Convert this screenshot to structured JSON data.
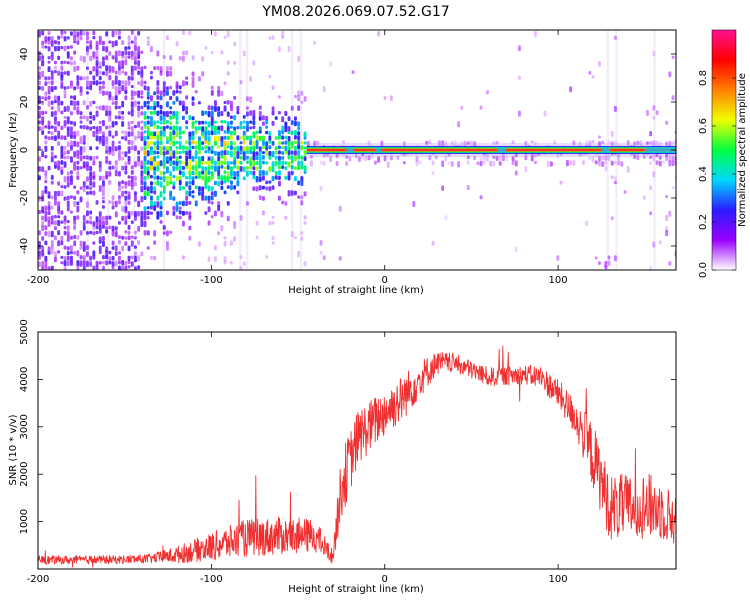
{
  "title": "YM08.2026.069.07.52.G17",
  "colors": {
    "snr_line": "#f03030",
    "frame": "#000000",
    "grid": "#e6e6e6"
  },
  "chart_data": [
    {
      "type": "heatmap",
      "title": "YM08.2026.069.07.52.G17",
      "xlabel": "Height of straight line (km)",
      "ylabel": "Frequency (Hz)",
      "xlim": [
        -200,
        168
      ],
      "ylim": [
        -50,
        50
      ],
      "xticks": [
        -200,
        -100,
        0,
        100
      ],
      "yticks": [
        -40,
        -20,
        0,
        20,
        40
      ],
      "colorbar": {
        "label": "Normalized spectral amplitude",
        "range": [
          0,
          1
        ],
        "ticks": [
          "0.0",
          "0.2",
          "0.4",
          "0.6",
          "0.8"
        ],
        "stops": [
          "#ffffff",
          "#9900ff",
          "#2a1cff",
          "#00d8ff",
          "#00ff40",
          "#f0ff00",
          "#ff8000",
          "#ff0000",
          "#ff1090"
        ]
      },
      "ridge": {
        "description": "strong spectral ridge near 0 Hz",
        "x_start": -45,
        "x_end": 168,
        "freq": 0,
        "amplitude": 1.0
      },
      "noise_regions": [
        {
          "x_from": -200,
          "x_to": -140,
          "level": "high, broadband"
        },
        {
          "x_from": -140,
          "x_to": -45,
          "level": "medium, concentrated near 0 Hz"
        }
      ]
    },
    {
      "type": "line",
      "xlabel": "Height of straight line (km)",
      "ylabel": "SNR (10 * v/v)",
      "xlim": [
        -200,
        168
      ],
      "ylim": [
        0,
        5000
      ],
      "xticks": [
        -200,
        -100,
        0,
        100
      ],
      "yticks": [
        1000,
        2000,
        3000,
        4000,
        5000
      ],
      "series": [
        {
          "name": "SNR",
          "envelope_x": [
            -200,
            -180,
            -150,
            -135,
            -120,
            -100,
            -80,
            -60,
            -40,
            -30,
            -25,
            -15,
            0,
            10,
            20,
            30,
            40,
            60,
            80,
            90,
            100,
            110,
            120,
            130,
            140,
            150,
            160,
            168
          ],
          "envelope_mean": [
            190,
            190,
            200,
            220,
            300,
            470,
            650,
            700,
            700,
            250,
            1750,
            2800,
            3300,
            3600,
            4000,
            4350,
            4350,
            4050,
            4100,
            4050,
            3700,
            3200,
            2400,
            1300,
            1300,
            1350,
            1250,
            1000
          ],
          "envelope_spread": [
            90,
            90,
            90,
            100,
            180,
            300,
            400,
            400,
            350,
            150,
            700,
            600,
            500,
            500,
            400,
            250,
            200,
            200,
            200,
            250,
            300,
            400,
            700,
            700,
            700,
            700,
            650,
            500
          ]
        }
      ]
    }
  ]
}
